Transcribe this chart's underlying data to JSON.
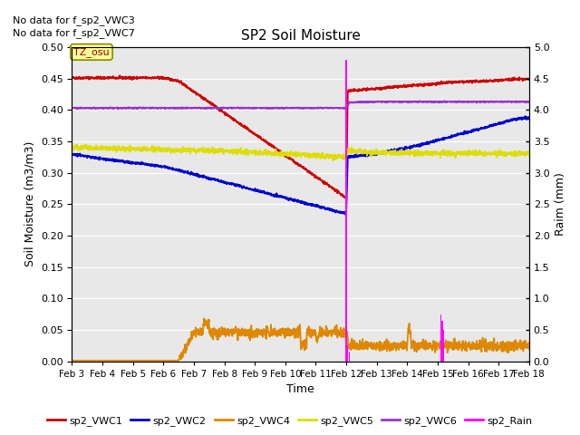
{
  "title": "SP2 Soil Moisture",
  "xlabel": "Time",
  "ylabel_left": "Soil Moisture (m3/m3)",
  "ylabel_right": "Raim (mm)",
  "no_data_text": [
    "No data for f_sp2_VWC3",
    "No data for f_sp2_VWC7"
  ],
  "tz_label": "TZ_osu",
  "ylim_left": [
    0.0,
    0.5
  ],
  "ylim_right": [
    0.0,
    5.0
  ],
  "yticks_left": [
    0.0,
    0.05,
    0.1,
    0.15,
    0.2,
    0.25,
    0.3,
    0.35,
    0.4,
    0.45,
    0.5
  ],
  "yticks_right": [
    0.0,
    0.5,
    1.0,
    1.5,
    2.0,
    2.5,
    3.0,
    3.5,
    4.0,
    4.5,
    5.0
  ],
  "x_tick_labels": [
    "Feb 3",
    "Feb 4",
    "Feb 5",
    "Feb 6",
    "Feb 7",
    "Feb 8",
    "Feb 9",
    "Feb 10",
    "Feb 11",
    "Feb 12",
    "Feb 13",
    "Feb 14",
    "Feb 15",
    "Feb 16",
    "Feb 17",
    "Feb 18"
  ],
  "bg_color": "#e8e8e8",
  "colors": {
    "VWC1": "#cc0000",
    "VWC2": "#0000cc",
    "VWC4": "#dd8800",
    "VWC5": "#dddd00",
    "VWC6": "#9933cc",
    "Rain": "#ff00ff"
  },
  "legend_labels": [
    "sp2_VWC1",
    "sp2_VWC2",
    "sp2_VWC4",
    "sp2_VWC5",
    "sp2_VWC6",
    "sp2_Rain"
  ],
  "legend_colors": [
    "#cc0000",
    "#0000cc",
    "#dd8800",
    "#dddd00",
    "#9933cc",
    "#ff00ff"
  ]
}
